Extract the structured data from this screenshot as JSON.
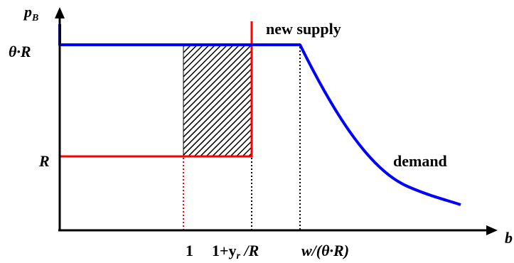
{
  "axes": {
    "y_label_main": "p",
    "y_label_sub": "B",
    "x_label": "b"
  },
  "price_levels": {
    "high": "θ·R",
    "low": "R"
  },
  "x_ticks": {
    "one": "1",
    "second_prefix": "1+y",
    "second_sub": "r",
    "second_suffix": " /R",
    "third_prefix": "w/(",
    "third_mid": "θ·R",
    "third_suffix": ")"
  },
  "curve_labels": {
    "new_supply": "new supply",
    "demand": "demand"
  },
  "colors": {
    "axis": "#000000",
    "demand": "#0000ff",
    "supply": "#ff0000",
    "hatch": "#000000",
    "guide_black": "#000000",
    "guide_red": "#ff0000"
  }
}
